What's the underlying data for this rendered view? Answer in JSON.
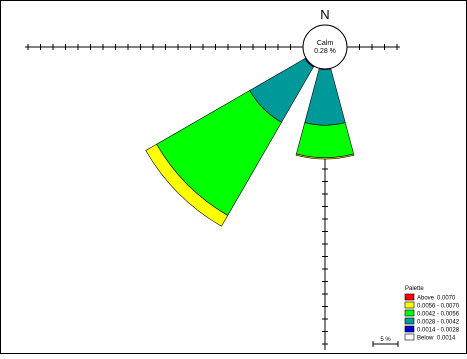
{
  "chart_data": {
    "type": "wind-rose",
    "north_label": "N",
    "calm": {
      "label": "Calm",
      "value_text": "0.28 %"
    },
    "scale_label": "5 %",
    "legend": {
      "title": "Palette",
      "entries": [
        {
          "label": "Above",
          "range": "0.0070",
          "color": "#ff0000"
        },
        {
          "label": "",
          "range": "0.0056 - 0.0070",
          "color": "#ffff00"
        },
        {
          "label": "",
          "range": "0.0042 - 0.0056",
          "color": "#00ff00"
        },
        {
          "label": "",
          "range": "0.0028 - 0.0042",
          "color": "#009999"
        },
        {
          "label": "",
          "range": "0.0014 - 0.0028",
          "color": "#0000cc"
        },
        {
          "label": "Below",
          "range": "0.0014",
          "color": "#ffffff"
        }
      ]
    },
    "bin_colors": [
      "#ffffff",
      "#0000cc",
      "#009999",
      "#00ff00",
      "#ffff00",
      "#ff0000"
    ],
    "petals": [
      {
        "direction_deg": 180,
        "half_width_deg": 15,
        "cumulative_percent": [
          0.0,
          0.05,
          4.5,
          7.1,
          7.2,
          7.2
        ]
      },
      {
        "direction_deg": 225,
        "half_width_deg": 15,
        "cumulative_percent": [
          0.0,
          0.1,
          5.2,
          13.8,
          14.8,
          14.8
        ]
      }
    ],
    "axis_tick_step_percent": 1
  }
}
